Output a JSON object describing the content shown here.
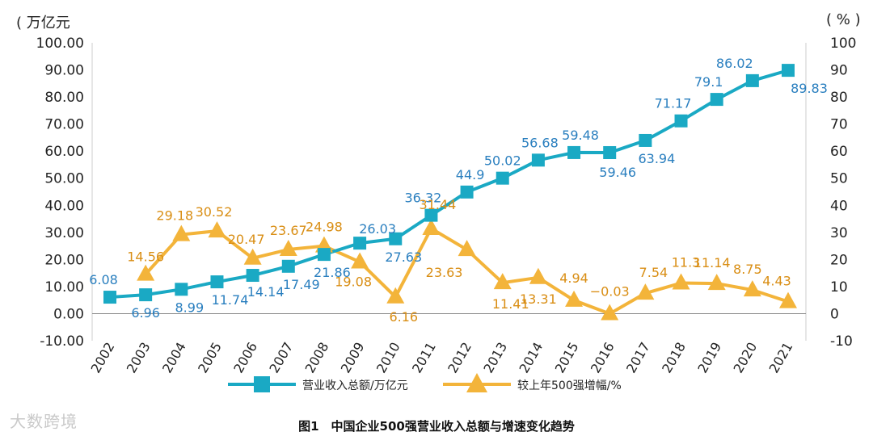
{
  "units": {
    "left": "( 万亿元",
    "right": "( % )"
  },
  "caption": "图1　中国企业500强营业收入总额与增速变化趋势",
  "watermark": "大数跨境",
  "colors": {
    "revenue": "#1aa9c4",
    "growth": "#f3b43a",
    "revenue_label": "#2a7fbf",
    "growth_label": "#d98e14",
    "axis": "#222222",
    "grid": "#cccccc"
  },
  "chart_data": {
    "type": "line",
    "categories": [
      "2002",
      "2003",
      "2004",
      "2005",
      "2006",
      "2007",
      "2008",
      "2009",
      "2010",
      "2011",
      "2012",
      "2013",
      "2014",
      "2015",
      "2016",
      "2017",
      "2018",
      "2019",
      "2020",
      "2021"
    ],
    "y_left": {
      "range": [
        -10,
        100
      ],
      "ticks": [
        "100.00",
        "90.00",
        "80.00",
        "70.00",
        "60.00",
        "50.00",
        "40.00",
        "30.00",
        "20.00",
        "10.00",
        "0.00",
        "-10.00"
      ]
    },
    "y_right": {
      "range": [
        -10,
        100
      ],
      "ticks": [
        "100",
        "90",
        "80",
        "70",
        "60",
        "50",
        "40",
        "30",
        "20",
        "10",
        "0",
        "-10"
      ]
    },
    "series": [
      {
        "name": "营业收入总额/万亿元",
        "marker": "square",
        "axis": "left",
        "values": [
          6.08,
          6.96,
          8.99,
          11.74,
          14.14,
          17.49,
          21.86,
          26.03,
          27.63,
          36.32,
          44.9,
          50.02,
          56.68,
          59.48,
          59.46,
          63.94,
          71.17,
          79.1,
          86.02,
          89.83
        ],
        "labels": [
          "6.08",
          "6.96",
          "8.99",
          "11.74",
          "14.14",
          "17.49",
          "21.86",
          "26.03",
          "27.63",
          "36.32",
          "44.9",
          "50.02",
          "56.68",
          "59.48",
          "59.46",
          "63.94",
          "71.17",
          "79.1",
          "86.02",
          "89.83"
        ]
      },
      {
        "name": "较上年500强增幅/%",
        "marker": "triangle",
        "axis": "right",
        "values": [
          null,
          14.56,
          29.18,
          30.52,
          20.47,
          23.67,
          24.98,
          19.08,
          6.16,
          31.44,
          23.63,
          11.41,
          13.31,
          4.94,
          -0.03,
          7.54,
          11.3,
          11.14,
          8.75,
          4.43
        ],
        "labels": [
          null,
          "14.56",
          "29.18",
          "30.52",
          "20.47",
          "23.67",
          "24.98",
          "19.08",
          "6.16",
          "31.44",
          "23.63",
          "11.41",
          "13.31",
          "4.94",
          "−0.03",
          "7.54",
          "11.3",
          "11.14",
          "8.75",
          "4.43"
        ]
      }
    ],
    "legend": "bottom-center"
  }
}
